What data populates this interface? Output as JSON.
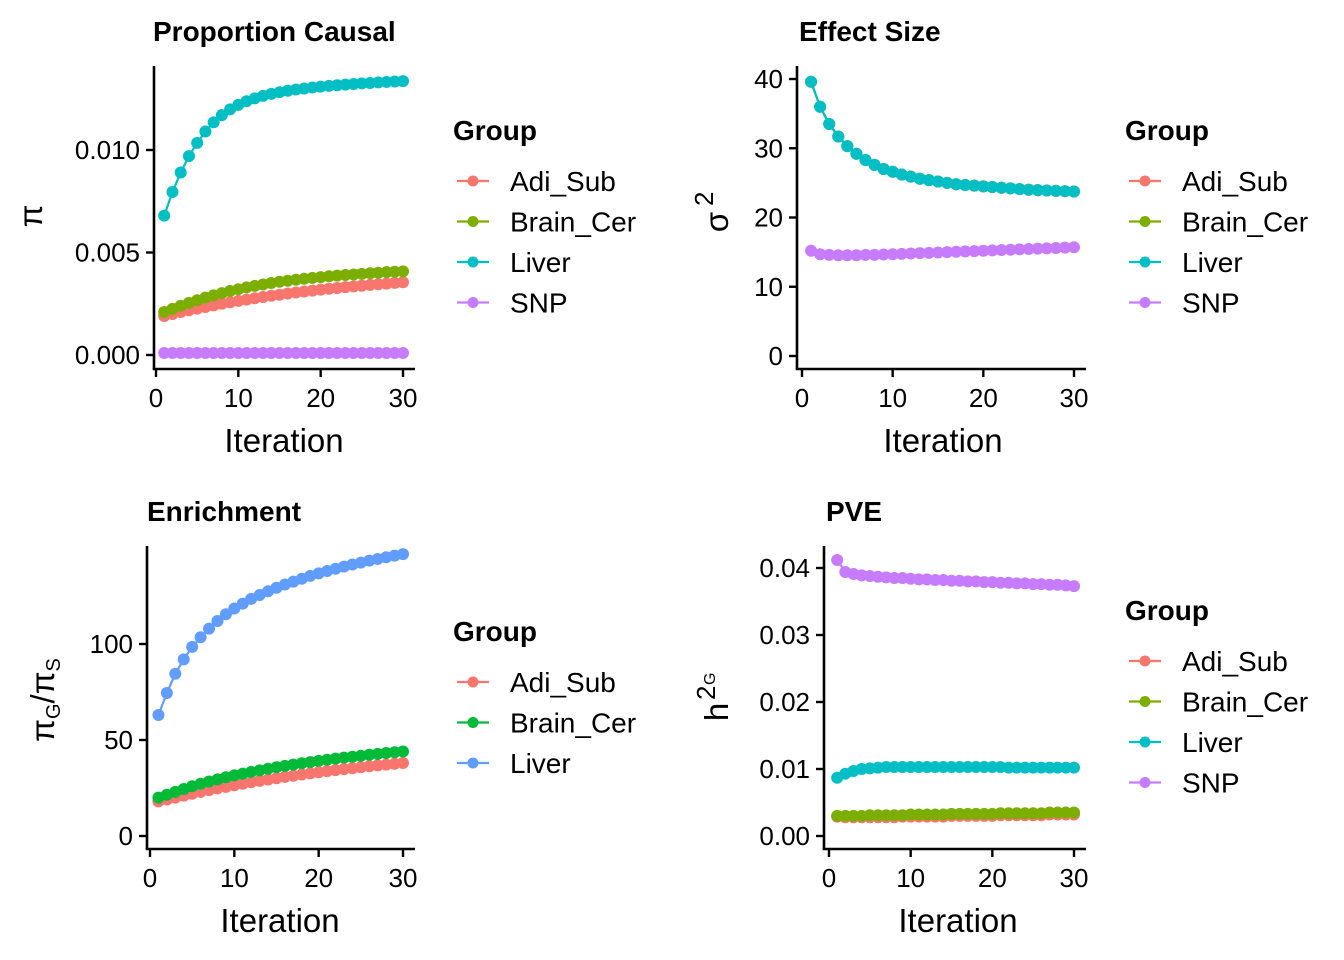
{
  "chart_data": [
    {
      "type": "line",
      "title": "Proportion Causal",
      "xlabel": "Iteration",
      "ylabel": "π",
      "xlim": [
        0,
        30
      ],
      "ylim": [
        0,
        0.014
      ],
      "xticks": [
        "0",
        "10",
        "20",
        "30"
      ],
      "yticks": [
        "0.000",
        "0.005",
        "0.010"
      ],
      "ytick_values": [
        0,
        0.005,
        0.01
      ],
      "legend_title": "Group",
      "legend_position": "right",
      "x": [
        1,
        2,
        3,
        4,
        5,
        6,
        7,
        8,
        9,
        10,
        11,
        12,
        13,
        14,
        15,
        16,
        17,
        18,
        19,
        20,
        21,
        22,
        23,
        24,
        25,
        26,
        27,
        28,
        29,
        30
      ],
      "series": [
        {
          "name": "Adi_Sub",
          "color": "#F8766D",
          "values": [
            0.0019,
            0.002,
            0.0021,
            0.00218,
            0.00226,
            0.00234,
            0.00242,
            0.0025,
            0.00257,
            0.00264,
            0.0027,
            0.00277,
            0.00283,
            0.00289,
            0.00294,
            0.003,
            0.00305,
            0.0031,
            0.00314,
            0.00319,
            0.00323,
            0.00327,
            0.00331,
            0.00335,
            0.00338,
            0.00342,
            0.00345,
            0.00348,
            0.00352,
            0.00355
          ]
        },
        {
          "name": "Brain_Cer",
          "color": "#7CAE00",
          "values": [
            0.0021,
            0.00225,
            0.0024,
            0.00254,
            0.00267,
            0.0028,
            0.00291,
            0.00302,
            0.00312,
            0.00321,
            0.0033,
            0.00337,
            0.00344,
            0.00351,
            0.00357,
            0.00362,
            0.00367,
            0.00372,
            0.00376,
            0.0038,
            0.00384,
            0.00387,
            0.0039,
            0.00393,
            0.00396,
            0.00399,
            0.00401,
            0.00404,
            0.00406,
            0.00408
          ]
        },
        {
          "name": "Liver",
          "color": "#00BFC4",
          "values": [
            0.0068,
            0.00795,
            0.0089,
            0.0097,
            0.01035,
            0.0109,
            0.01135,
            0.0117,
            0.01198,
            0.0122,
            0.01238,
            0.01252,
            0.01264,
            0.01274,
            0.01282,
            0.01289,
            0.01295,
            0.013,
            0.01305,
            0.01309,
            0.01313,
            0.01316,
            0.01319,
            0.01322,
            0.01325,
            0.01327,
            0.0133,
            0.01332,
            0.01334,
            0.01336
          ]
        },
        {
          "name": "SNP",
          "color": "#C77CFF",
          "values": [
            0.0001,
            0.0001,
            0.0001,
            0.0001,
            0.0001,
            0.0001,
            0.0001,
            0.0001,
            0.0001,
            0.0001,
            0.0001,
            0.0001,
            0.0001,
            0.0001,
            0.0001,
            0.0001,
            0.0001,
            0.0001,
            0.0001,
            0.0001,
            0.0001,
            0.0001,
            0.0001,
            0.0001,
            0.0001,
            0.0001,
            0.0001,
            0.0001,
            0.0001,
            0.0001
          ]
        }
      ]
    },
    {
      "type": "line",
      "title": "Effect Size",
      "xlabel": "Iteration",
      "ylabel": "σ²",
      "xlim": [
        0,
        30
      ],
      "ylim": [
        0,
        41
      ],
      "xticks": [
        "0",
        "10",
        "20",
        "30"
      ],
      "yticks": [
        "0",
        "10",
        "20",
        "30",
        "40"
      ],
      "ytick_values": [
        0,
        10,
        20,
        30,
        40
      ],
      "legend_title": "Group",
      "legend_position": "right",
      "x": [
        1,
        2,
        3,
        4,
        5,
        6,
        7,
        8,
        9,
        10,
        11,
        12,
        13,
        14,
        15,
        16,
        17,
        18,
        19,
        20,
        21,
        22,
        23,
        24,
        25,
        26,
        27,
        28,
        29,
        30
      ],
      "series": [
        {
          "name": "Adi_Sub",
          "color": "#F8766D",
          "values": [
            39.6,
            36.0,
            33.5,
            31.7,
            30.3,
            29.2,
            28.3,
            27.6,
            27.0,
            26.6,
            26.2,
            25.9,
            25.6,
            25.4,
            25.2,
            25.0,
            24.8,
            24.7,
            24.6,
            24.5,
            24.4,
            24.3,
            24.2,
            24.1,
            24.0,
            23.95,
            23.9,
            23.85,
            23.8,
            23.75
          ]
        },
        {
          "name": "Brain_Cer",
          "color": "#7CAE00",
          "values": [
            39.6,
            36.0,
            33.5,
            31.7,
            30.3,
            29.2,
            28.3,
            27.6,
            27.0,
            26.6,
            26.2,
            25.9,
            25.6,
            25.4,
            25.2,
            25.0,
            24.8,
            24.7,
            24.6,
            24.5,
            24.4,
            24.3,
            24.2,
            24.1,
            24.0,
            23.95,
            23.9,
            23.85,
            23.8,
            23.75
          ]
        },
        {
          "name": "Liver",
          "color": "#00BFC4",
          "values": [
            39.6,
            36.0,
            33.5,
            31.7,
            30.3,
            29.2,
            28.3,
            27.6,
            27.0,
            26.6,
            26.2,
            25.9,
            25.6,
            25.4,
            25.2,
            25.0,
            24.8,
            24.7,
            24.6,
            24.5,
            24.4,
            24.3,
            24.2,
            24.1,
            24.0,
            23.95,
            23.9,
            23.85,
            23.8,
            23.75
          ]
        },
        {
          "name": "SNP",
          "color": "#C77CFF",
          "values": [
            15.2,
            14.7,
            14.6,
            14.55,
            14.55,
            14.55,
            14.6,
            14.6,
            14.65,
            14.7,
            14.75,
            14.8,
            14.85,
            14.9,
            14.95,
            15.0,
            15.05,
            15.1,
            15.15,
            15.2,
            15.25,
            15.3,
            15.35,
            15.4,
            15.45,
            15.5,
            15.55,
            15.6,
            15.65,
            15.7
          ]
        }
      ]
    },
    {
      "type": "line",
      "title": "Enrichment",
      "xlabel": "Iteration",
      "ylabel": "πG/πS",
      "xlim": [
        0,
        30
      ],
      "ylim": [
        0,
        150
      ],
      "xticks": [
        "0",
        "10",
        "20",
        "30"
      ],
      "yticks": [
        "0",
        "50",
        "100"
      ],
      "ytick_values": [
        0,
        50,
        100
      ],
      "legend_title": "Group",
      "legend_position": "right",
      "x": [
        1,
        2,
        3,
        4,
        5,
        6,
        7,
        8,
        9,
        10,
        11,
        12,
        13,
        14,
        15,
        16,
        17,
        18,
        19,
        20,
        21,
        22,
        23,
        24,
        25,
        26,
        27,
        28,
        29,
        30
      ],
      "series": [
        {
          "name": "Adi_Sub",
          "color": "#F8766D",
          "values": [
            18.0,
            19.0,
            20.0,
            21.0,
            22.0,
            23.0,
            23.9,
            24.8,
            25.6,
            26.4,
            27.2,
            28.0,
            28.7,
            29.4,
            30.1,
            30.8,
            31.4,
            32.0,
            32.6,
            33.2,
            33.8,
            34.3,
            34.8,
            35.3,
            35.8,
            36.3,
            36.8,
            37.2,
            37.6,
            38.0
          ]
        },
        {
          "name": "Brain_Cer",
          "color": "#00BA38",
          "values": [
            20.0,
            21.5,
            23.0,
            24.5,
            25.9,
            27.2,
            28.4,
            29.5,
            30.6,
            31.6,
            32.5,
            33.4,
            34.2,
            35.0,
            35.8,
            36.5,
            37.2,
            37.9,
            38.5,
            39.1,
            39.7,
            40.3,
            40.8,
            41.3,
            41.8,
            42.3,
            42.8,
            43.2,
            43.6,
            44.0
          ]
        },
        {
          "name": "Liver",
          "color": "#619CFF",
          "values": [
            63.0,
            74.5,
            84.5,
            92.0,
            98.5,
            103.5,
            108.0,
            112.0,
            115.5,
            118.5,
            121.0,
            123.5,
            125.5,
            127.5,
            129.3,
            131.0,
            132.5,
            134.0,
            135.5,
            136.8,
            138.0,
            139.2,
            140.3,
            141.4,
            142.4,
            143.4,
            144.3,
            145.2,
            146.0,
            146.8
          ]
        }
      ]
    },
    {
      "type": "line",
      "title": "PVE",
      "xlabel": "Iteration",
      "ylabel": "h²G",
      "xlim": [
        0,
        30
      ],
      "ylim": [
        0,
        0.0425
      ],
      "xticks": [
        "0",
        "10",
        "20",
        "30"
      ],
      "yticks": [
        "0.00",
        "0.01",
        "0.02",
        "0.03",
        "0.04"
      ],
      "ytick_values": [
        0,
        0.01,
        0.02,
        0.03,
        0.04
      ],
      "legend_title": "Group",
      "legend_position": "right",
      "x": [
        1,
        2,
        3,
        4,
        5,
        6,
        7,
        8,
        9,
        10,
        11,
        12,
        13,
        14,
        15,
        16,
        17,
        18,
        19,
        20,
        21,
        22,
        23,
        24,
        25,
        26,
        27,
        28,
        29,
        30
      ],
      "series": [
        {
          "name": "Adi_Sub",
          "color": "#F8766D",
          "values": [
            0.0029,
            0.0028,
            0.0028,
            0.0028,
            0.0028,
            0.0028,
            0.0028,
            0.0028,
            0.0029,
            0.0029,
            0.0029,
            0.0029,
            0.0029,
            0.0029,
            0.003,
            0.003,
            0.003,
            0.003,
            0.003,
            0.003,
            0.0031,
            0.0031,
            0.0031,
            0.0031,
            0.0031,
            0.0031,
            0.0032,
            0.0032,
            0.0032,
            0.0032
          ]
        },
        {
          "name": "Brain_Cer",
          "color": "#7CAE00",
          "values": [
            0.003,
            0.003,
            0.003,
            0.003,
            0.0031,
            0.0031,
            0.0031,
            0.0031,
            0.0031,
            0.0032,
            0.0032,
            0.0032,
            0.0032,
            0.0032,
            0.0033,
            0.0033,
            0.0033,
            0.0033,
            0.0033,
            0.0033,
            0.0034,
            0.0034,
            0.0034,
            0.0034,
            0.0034,
            0.0034,
            0.0035,
            0.0035,
            0.0035,
            0.0035
          ]
        },
        {
          "name": "Liver",
          "color": "#00BFC4",
          "values": [
            0.0087,
            0.0093,
            0.0097,
            0.01,
            0.0101,
            0.0102,
            0.0103,
            0.0103,
            0.0103,
            0.0103,
            0.0103,
            0.0103,
            0.0103,
            0.0103,
            0.0103,
            0.0103,
            0.0103,
            0.0103,
            0.0103,
            0.0103,
            0.0103,
            0.0102,
            0.0102,
            0.0102,
            0.0102,
            0.0102,
            0.0102,
            0.0102,
            0.0102,
            0.0102
          ]
        },
        {
          "name": "SNP",
          "color": "#C77CFF",
          "values": [
            0.0412,
            0.0394,
            0.0391,
            0.0389,
            0.0388,
            0.0387,
            0.0386,
            0.0385,
            0.0385,
            0.0384,
            0.0383,
            0.0383,
            0.0382,
            0.0382,
            0.0381,
            0.0381,
            0.038,
            0.038,
            0.0379,
            0.0379,
            0.0378,
            0.0378,
            0.0377,
            0.0377,
            0.0376,
            0.0376,
            0.0375,
            0.0375,
            0.0374,
            0.0373
          ]
        }
      ]
    }
  ]
}
